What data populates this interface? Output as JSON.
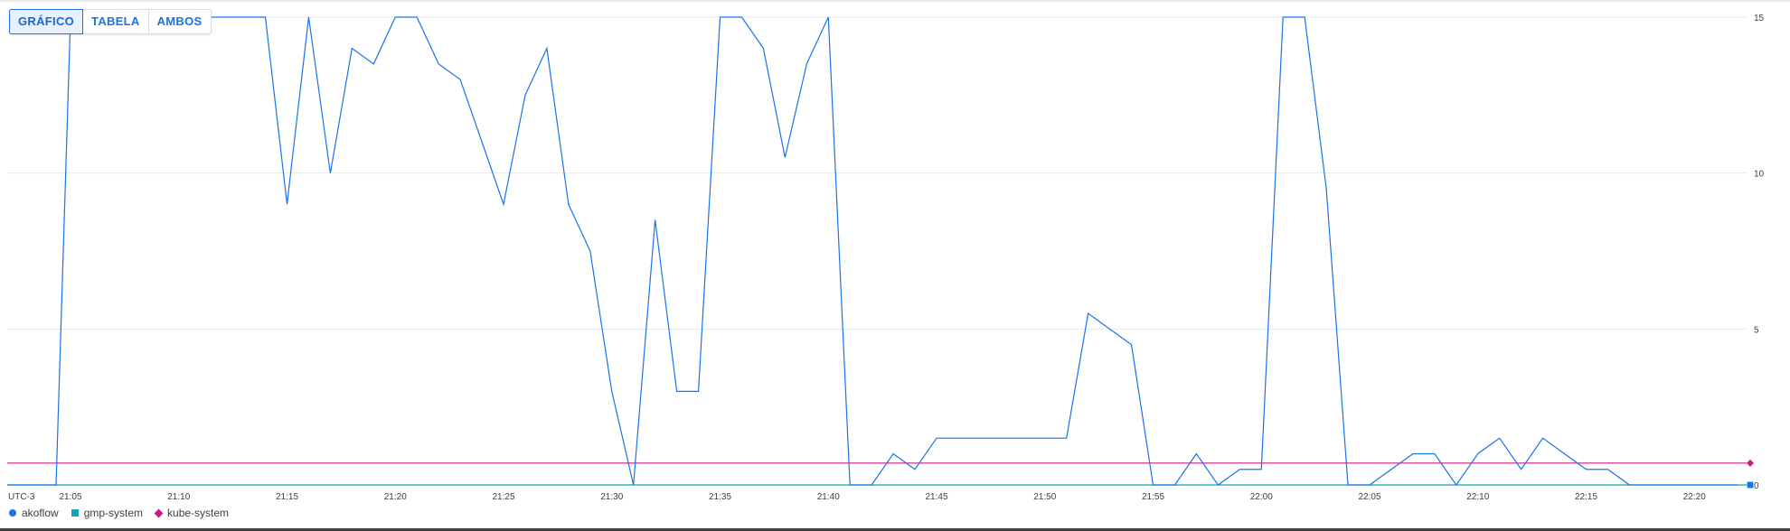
{
  "toggle": {
    "options": [
      "GRÁFICO",
      "TABELA",
      "AMBOS"
    ],
    "selected": "GRÁFICO"
  },
  "timezone_label": "UTC-3",
  "legend": [
    {
      "name": "akoflow",
      "color": "#1a73e8",
      "marker": "circle"
    },
    {
      "name": "gmp-system",
      "color": "#12a4af",
      "marker": "square"
    },
    {
      "name": "kube-system",
      "color": "#d01884",
      "marker": "diamond"
    }
  ],
  "chart_data": {
    "type": "line",
    "title": "",
    "xlabel": "",
    "ylabel": "",
    "ylim": [
      0,
      15
    ],
    "y_ticks": [
      "0",
      "5",
      "10",
      "15"
    ],
    "x_ticks": [
      "21:05",
      "21:10",
      "21:15",
      "21:20",
      "21:25",
      "21:30",
      "21:35",
      "21:40",
      "21:45",
      "21:50",
      "21:55",
      "22:00",
      "22:05",
      "22:10",
      "22:15",
      "22:20"
    ],
    "grid": "horizontal",
    "legend_position": "bottom-left",
    "series": [
      {
        "name": "akoflow",
        "color": "#1a73e8",
        "x": [
          "21:03",
          "21:04",
          "21:05",
          "21:06",
          "21:07",
          "21:08",
          "21:09",
          "21:10",
          "21:11",
          "21:12",
          "21:13",
          "21:14",
          "21:15",
          "21:16",
          "21:17",
          "21:18",
          "21:19",
          "21:20",
          "21:21",
          "21:22",
          "21:23",
          "21:24",
          "21:25",
          "21:26",
          "21:27",
          "21:28",
          "21:29",
          "21:30",
          "21:31",
          "21:32",
          "21:33",
          "21:34",
          "21:35",
          "21:36",
          "21:37",
          "21:38",
          "21:39",
          "21:40",
          "21:41",
          "21:42",
          "21:43",
          "21:44",
          "21:45",
          "21:46",
          "21:47",
          "21:48",
          "21:49",
          "21:50",
          "21:51",
          "21:52",
          "21:53",
          "21:54",
          "21:55",
          "21:56",
          "21:57",
          "21:58",
          "21:59",
          "22:00",
          "22:01",
          "22:02",
          "22:03",
          "22:04",
          "22:05",
          "22:06",
          "22:07",
          "22:08",
          "22:09",
          "22:10",
          "22:11",
          "22:12",
          "22:13",
          "22:14",
          "22:15",
          "22:16",
          "22:17",
          "22:18",
          "22:19",
          "22:20",
          "22:21",
          "22:22"
        ],
        "values": [
          0,
          0,
          15,
          15,
          15,
          15,
          15,
          15,
          15,
          15,
          15,
          15,
          9,
          15,
          10,
          14,
          13.5,
          15,
          15,
          13.5,
          13,
          11,
          9,
          12.5,
          14,
          9,
          7.5,
          3,
          0,
          8.5,
          3,
          3,
          15,
          15,
          14,
          10.5,
          13.5,
          15,
          0,
          0,
          1,
          0.5,
          1.5,
          1.5,
          1.5,
          1.5,
          1.5,
          1.5,
          1.5,
          5.5,
          5,
          4.5,
          0,
          0,
          1,
          0,
          0.5,
          0.5,
          15,
          15,
          9.5,
          0,
          0,
          0.5,
          1,
          1,
          0,
          1,
          1.5,
          0.5,
          1.5,
          1,
          0.5,
          0.5,
          0,
          0,
          0,
          0,
          0,
          0
        ]
      },
      {
        "name": "gmp-system",
        "color": "#12a4af",
        "x": [
          "21:03",
          "22:22"
        ],
        "values": [
          0,
          0
        ]
      },
      {
        "name": "kube-system",
        "color": "#d01884",
        "x": [
          "21:03",
          "22:22"
        ],
        "values": [
          0.7,
          0.7
        ]
      }
    ]
  }
}
